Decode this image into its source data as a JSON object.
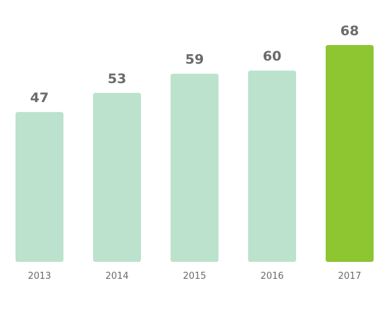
{
  "chart_data": {
    "type": "bar",
    "categories": [
      "2013",
      "2014",
      "2015",
      "2016",
      "2017"
    ],
    "values": [
      47,
      53,
      59,
      60,
      68
    ],
    "ylim": [
      0,
      70
    ],
    "grid": false,
    "legend": "none",
    "colors": {
      "default_bar": "#bce2cd",
      "highlight_bar": "#8dc630",
      "label": "#6b6b6b"
    },
    "highlight_index": 4
  }
}
